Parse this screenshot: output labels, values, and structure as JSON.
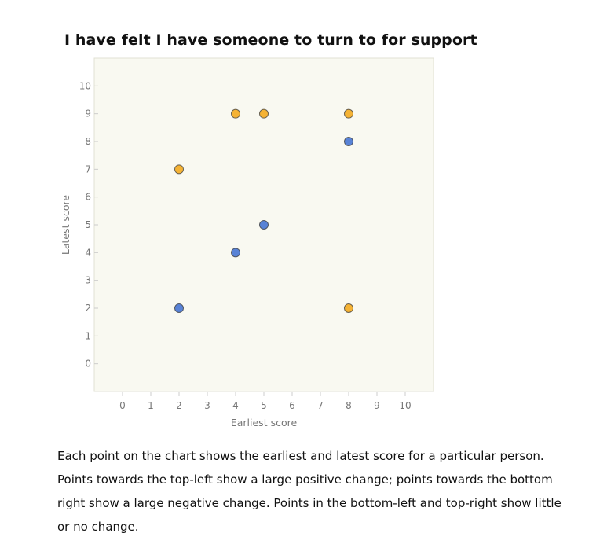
{
  "title": "I have felt I have someone to turn to for support",
  "caption": "Each point on the chart shows the earliest and latest score for a particular person. Points towards the top-left show a large positive change; points towards the bottom right show a large negative change. Points in the bottom-left and top-right show little or no change.",
  "chart_data": {
    "type": "scatter",
    "xlabel": "Earliest score",
    "ylabel": "Latest score",
    "xlim": [
      -1,
      11
    ],
    "ylim": [
      -1,
      11
    ],
    "xticks": [
      0,
      1,
      2,
      3,
      4,
      5,
      6,
      7,
      8,
      9,
      10
    ],
    "yticks": [
      0,
      1,
      2,
      3,
      4,
      5,
      6,
      7,
      8,
      9,
      10
    ],
    "grid": false,
    "plot_background": "#f9f9f1",
    "points": [
      {
        "x": 4,
        "y": 9,
        "color": "#f5b335"
      },
      {
        "x": 5,
        "y": 9,
        "color": "#f5b335"
      },
      {
        "x": 8,
        "y": 9,
        "color": "#f5b335"
      },
      {
        "x": 8,
        "y": 8,
        "color": "#5983d6"
      },
      {
        "x": 2,
        "y": 7,
        "color": "#f5b335"
      },
      {
        "x": 5,
        "y": 5,
        "color": "#5983d6"
      },
      {
        "x": 4,
        "y": 4,
        "color": "#5983d6"
      },
      {
        "x": 2,
        "y": 2,
        "color": "#5983d6"
      },
      {
        "x": 8,
        "y": 2,
        "color": "#f5b335"
      }
    ]
  }
}
